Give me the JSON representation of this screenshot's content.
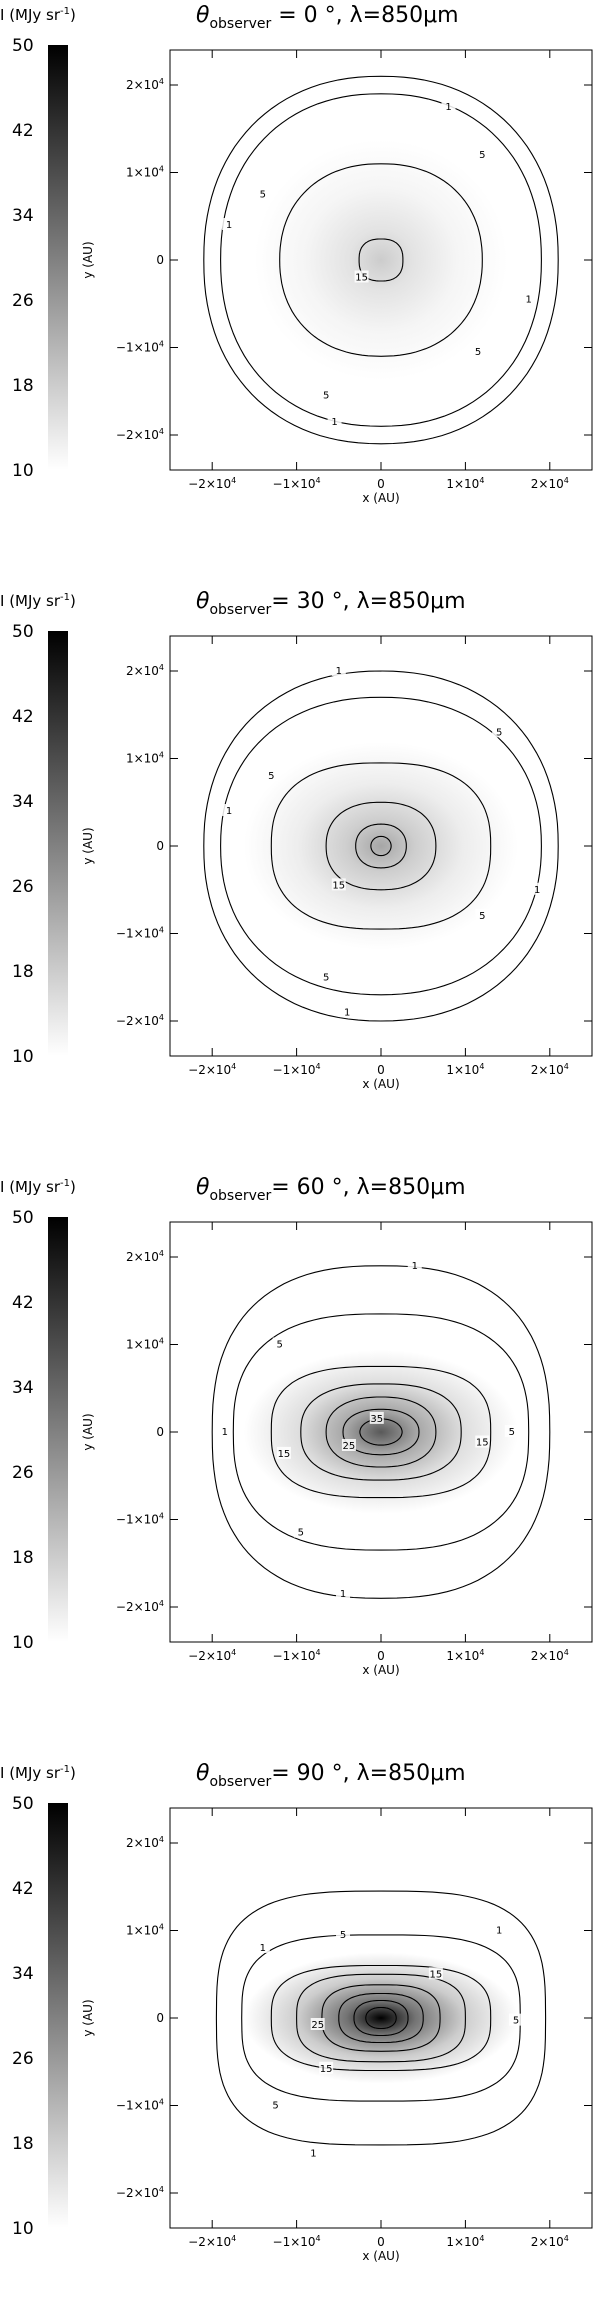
{
  "chart_data": [
    {
      "type": "heatmap",
      "title": {
        "prefix": "θ",
        "sub": "observer",
        "rest": " = 0 °,  λ=850μm"
      },
      "colorbar": {
        "label": "I (MJy sr",
        "label_sup": "-1",
        "label_end": ")",
        "ticks": [
          "50",
          "42",
          "34",
          "26",
          "18",
          "10"
        ],
        "range": [
          10,
          50
        ]
      },
      "xlabel": "x (AU)",
      "ylabel": "y (AU)",
      "xlim": [
        -25000,
        25000
      ],
      "ylim": [
        -24000,
        24000
      ],
      "ticks": [
        {
          "v": -20000,
          "m": "−2×10",
          "e": "4"
        },
        {
          "v": -10000,
          "m": "−1×10",
          "e": "4"
        },
        {
          "v": 0,
          "m": "0",
          "e": ""
        },
        {
          "v": 10000,
          "m": "1×10",
          "e": "4"
        },
        {
          "v": 20000,
          "m": "2×10",
          "e": "4"
        }
      ],
      "peak_intensity": 18,
      "contours": [
        {
          "level": "1",
          "rx": 21000,
          "ry": 21000,
          "n": 2.2
        },
        {
          "level": "5",
          "rx": 19000,
          "ry": 19000,
          "n": 2.2
        },
        {
          "level": "15",
          "rx": 12000,
          "ry": 11000,
          "n": 2.2
        },
        {
          "level": "15",
          "rx": 2600,
          "ry": 2400,
          "n": 2.5
        }
      ],
      "contour_labels": [
        {
          "text": "1",
          "x": 8000,
          "y": 17500
        },
        {
          "text": "5",
          "x": 12000,
          "y": 12000
        },
        {
          "text": "5",
          "x": -14000,
          "y": 7500
        },
        {
          "text": "1",
          "x": -18000,
          "y": 4000
        },
        {
          "text": "15",
          "x": -2300,
          "y": -2000
        },
        {
          "text": "5",
          "x": 11500,
          "y": -10500
        },
        {
          "text": "1",
          "x": 17500,
          "y": -4500
        },
        {
          "text": "5",
          "x": -6500,
          "y": -15500
        },
        {
          "text": "1",
          "x": -5500,
          "y": -18500
        }
      ]
    },
    {
      "type": "heatmap",
      "title": {
        "prefix": "θ",
        "sub": "observer",
        "rest": "= 30 °,  λ=850μm"
      },
      "colorbar": {
        "label": "I (MJy sr",
        "label_sup": "-1",
        "label_end": ")",
        "ticks": [
          "50",
          "42",
          "34",
          "26",
          "18",
          "10"
        ],
        "range": [
          10,
          50
        ]
      },
      "xlabel": "x (AU)",
      "ylabel": "y (AU)",
      "xlim": [
        -25000,
        25000
      ],
      "ylim": [
        -24000,
        24000
      ],
      "ticks": [
        {
          "v": -20000,
          "m": "−2×10",
          "e": "4"
        },
        {
          "v": -10000,
          "m": "−1×10",
          "e": "4"
        },
        {
          "v": 0,
          "m": "0",
          "e": ""
        },
        {
          "v": 10000,
          "m": "1×10",
          "e": "4"
        },
        {
          "v": 20000,
          "m": "2×10",
          "e": "4"
        }
      ],
      "peak_intensity": 24,
      "contours": [
        {
          "level": "1",
          "rx": 21000,
          "ry": 20000,
          "n": 2.2
        },
        {
          "level": "5",
          "rx": 19000,
          "ry": 17000,
          "n": 2.2
        },
        {
          "level": "15",
          "rx": 13000,
          "ry": 9500,
          "n": 2.5
        },
        {
          "level": "15",
          "rx": 6500,
          "ry": 5000,
          "n": 2.3
        },
        {
          "level": "25",
          "rx": 3000,
          "ry": 2500,
          "n": 2.2
        },
        {
          "level": "35",
          "rx": 1200,
          "ry": 1100,
          "n": 2.0
        }
      ],
      "contour_labels": [
        {
          "text": "1",
          "x": -5000,
          "y": 20000
        },
        {
          "text": "5",
          "x": 14000,
          "y": 13000
        },
        {
          "text": "5",
          "x": -13000,
          "y": 8000
        },
        {
          "text": "1",
          "x": -18000,
          "y": 4000
        },
        {
          "text": "15",
          "x": -5000,
          "y": -4500
        },
        {
          "text": "5",
          "x": 12000,
          "y": -8000
        },
        {
          "text": "1",
          "x": 18500,
          "y": -5000
        },
        {
          "text": "5",
          "x": -6500,
          "y": -15000
        },
        {
          "text": "1",
          "x": -4000,
          "y": -19000
        }
      ]
    },
    {
      "type": "heatmap",
      "title": {
        "prefix": "θ",
        "sub": "observer",
        "rest": "= 60 °,  λ=850μm"
      },
      "colorbar": {
        "label": "I (MJy sr",
        "label_sup": "-1",
        "label_end": ")",
        "ticks": [
          "50",
          "42",
          "34",
          "26",
          "18",
          "10"
        ],
        "range": [
          10,
          50
        ]
      },
      "xlabel": "x (AU)",
      "ylabel": "y (AU)",
      "xlim": [
        -25000,
        25000
      ],
      "ylim": [
        -24000,
        24000
      ],
      "ticks": [
        {
          "v": -20000,
          "m": "−2×10",
          "e": "4"
        },
        {
          "v": -10000,
          "m": "−1×10",
          "e": "4"
        },
        {
          "v": 0,
          "m": "0",
          "e": ""
        },
        {
          "v": 10000,
          "m": "1×10",
          "e": "4"
        },
        {
          "v": 20000,
          "m": "2×10",
          "e": "4"
        }
      ],
      "peak_intensity": 36,
      "contours": [
        {
          "level": "1",
          "rx": 20000,
          "ry": 19000,
          "n": 2.5
        },
        {
          "level": "5",
          "rx": 17500,
          "ry": 13500,
          "n": 2.6
        },
        {
          "level": "15",
          "rx": 13000,
          "ry": 7500,
          "n": 2.8
        },
        {
          "level": "15",
          "rx": 9500,
          "ry": 5500,
          "n": 2.5
        },
        {
          "level": "25",
          "rx": 6500,
          "ry": 4000,
          "n": 2.3
        },
        {
          "level": "25",
          "rx": 4500,
          "ry": 2600,
          "n": 2.2
        },
        {
          "level": "35",
          "rx": 2500,
          "ry": 1500,
          "n": 2.0
        }
      ],
      "contour_labels": [
        {
          "text": "1",
          "x": 4000,
          "y": 19000
        },
        {
          "text": "5",
          "x": -12000,
          "y": 10000
        },
        {
          "text": "1",
          "x": -18500,
          "y": 0
        },
        {
          "text": "5",
          "x": 15500,
          "y": 0
        },
        {
          "text": "15",
          "x": 12000,
          "y": -1200
        },
        {
          "text": "15",
          "x": -11500,
          "y": -2500
        },
        {
          "text": "25",
          "x": -3800,
          "y": -1600
        },
        {
          "text": "35",
          "x": -500,
          "y": 1500
        },
        {
          "text": "5",
          "x": -9500,
          "y": -11500
        },
        {
          "text": "1",
          "x": -4500,
          "y": -18500
        }
      ]
    },
    {
      "type": "heatmap",
      "title": {
        "prefix": "θ",
        "sub": "observer",
        "rest": "= 90 °,  λ=850μm"
      },
      "colorbar": {
        "label": "I (MJy sr",
        "label_sup": "-1",
        "label_end": ")",
        "ticks": [
          "50",
          "42",
          "34",
          "26",
          "18",
          "10"
        ],
        "range": [
          10,
          50
        ]
      },
      "xlabel": "x (AU)",
      "ylabel": "y (AU)",
      "xlim": [
        -25000,
        25000
      ],
      "ylim": [
        -24000,
        24000
      ],
      "ticks": [
        {
          "v": -20000,
          "m": "−2×10",
          "e": "4"
        },
        {
          "v": -10000,
          "m": "−1×10",
          "e": "4"
        },
        {
          "v": 0,
          "m": "0",
          "e": ""
        },
        {
          "v": 10000,
          "m": "1×10",
          "e": "4"
        },
        {
          "v": 20000,
          "m": "2×10",
          "e": "4"
        }
      ],
      "peak_intensity": 50,
      "contours": [
        {
          "level": "1",
          "rx": 19500,
          "ry": 14500,
          "n": 3.2
        },
        {
          "level": "5",
          "rx": 16500,
          "ry": 9500,
          "n": 3.2
        },
        {
          "level": "15",
          "rx": 13000,
          "ry": 6000,
          "n": 3.0
        },
        {
          "level": "15",
          "rx": 10000,
          "ry": 5000,
          "n": 3.0
        },
        {
          "level": "25",
          "rx": 7000,
          "ry": 3800,
          "n": 2.8
        },
        {
          "level": "25",
          "rx": 5000,
          "ry": 2800,
          "n": 2.6
        },
        {
          "level": "35",
          "rx": 3200,
          "ry": 2000,
          "n": 2.4
        },
        {
          "level": "35",
          "rx": 1800,
          "ry": 1200,
          "n": 2.2
        }
      ],
      "contour_labels": [
        {
          "text": "1",
          "x": 14000,
          "y": 10000
        },
        {
          "text": "1",
          "x": -14000,
          "y": 8000
        },
        {
          "text": "5",
          "x": -4500,
          "y": 9500
        },
        {
          "text": "15",
          "x": 6500,
          "y": 5000
        },
        {
          "text": "5",
          "x": 16000,
          "y": -300
        },
        {
          "text": "25",
          "x": -7500,
          "y": -800
        },
        {
          "text": "15",
          "x": -6500,
          "y": -5800
        },
        {
          "text": "5",
          "x": -12500,
          "y": -10000
        },
        {
          "text": "1",
          "x": -8000,
          "y": -15500
        }
      ]
    }
  ]
}
